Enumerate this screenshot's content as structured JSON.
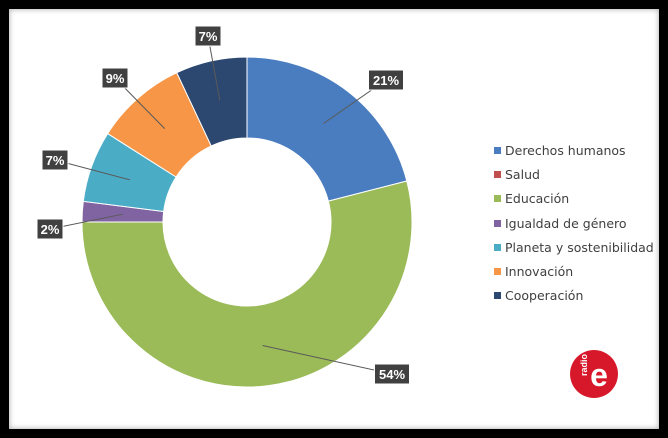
{
  "chart_data": {
    "type": "pie",
    "title": "",
    "donut": true,
    "legend_position": "right",
    "slices": [
      {
        "name": "Derechos humanos",
        "value": 21,
        "label": "21%",
        "color": "#4a7dc0"
      },
      {
        "name": "Salud",
        "value": 0,
        "label": "",
        "color": "#c0504d"
      },
      {
        "name": "Educación",
        "value": 54,
        "label": "54%",
        "color": "#9bbb59"
      },
      {
        "name": "Igualdad de género",
        "value": 2,
        "label": "2%",
        "color": "#8064a2"
      },
      {
        "name": "Planeta y sostenibilidad",
        "value": 7,
        "label": "7%",
        "color": "#4bacc6"
      },
      {
        "name": "Innovación",
        "value": 9,
        "label": "9%",
        "color": "#f79646"
      },
      {
        "name": "Cooperación",
        "value": 7,
        "label": "7%",
        "color": "#2c4770"
      }
    ]
  },
  "logo": {
    "text_small": "radio",
    "text_big": "e",
    "color": "#d7182a",
    "icon": "radio-e-logo"
  }
}
